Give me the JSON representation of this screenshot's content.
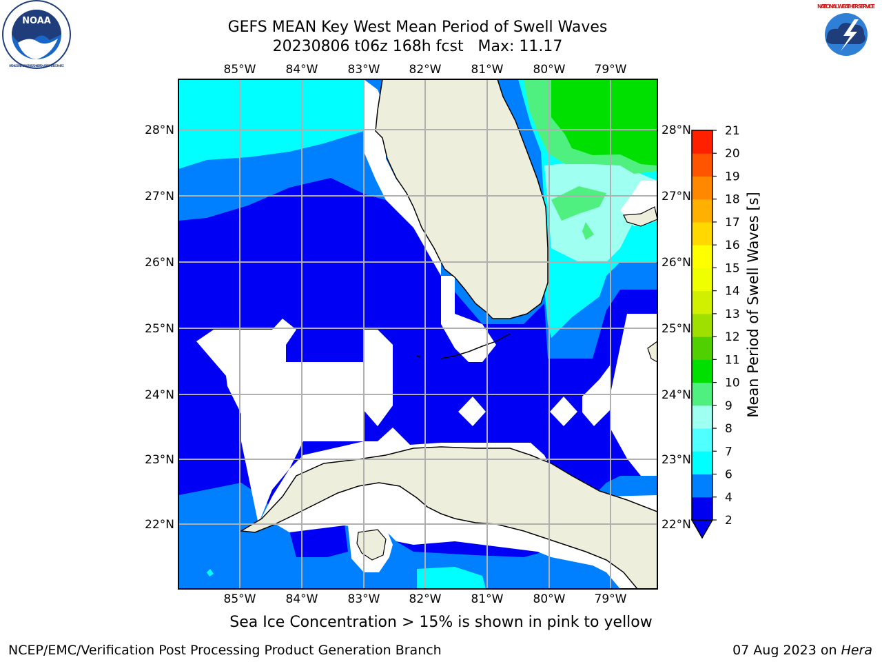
{
  "header": {
    "title_line1": "GEFS MEAN Key West Mean Period of Swell Waves",
    "title_line2": "20230806 t06z 168h fcst   Max: 11.17"
  },
  "logos": {
    "left": {
      "name": "NOAA",
      "ring_text": "NATIONAL OCEANIC AND ATMOSPHERIC ADMINISTRATION • U.S. DEPARTMENT OF COMMERCE"
    },
    "right": {
      "name": "NATIONAL WEATHER SERVICE"
    }
  },
  "map": {
    "lon_labels": [
      "85°W",
      "84°W",
      "83°W",
      "82°W",
      "81°W",
      "80°W",
      "79°W"
    ],
    "lat_labels": [
      "28°N",
      "27°N",
      "26°N",
      "25°N",
      "24°N",
      "23°N",
      "22°N"
    ],
    "colors": {
      "land": "#eeeedc",
      "ocean_2_4": "#0000f5",
      "ocean_4_6": "#0080ff",
      "ocean_6_7": "#00ffff",
      "ocean_8_9": "#9ffff0",
      "ocean_9_10": "#50f080",
      "ocean_10_11": "#00e000",
      "grid": "#b0b0b0"
    }
  },
  "colorbar": {
    "label": "Mean Period of Swell Waves [s]",
    "ticks": [
      "2",
      "4",
      "6",
      "7",
      "8",
      "9",
      "10",
      "11",
      "12",
      "13",
      "14",
      "15",
      "16",
      "17",
      "18",
      "19",
      "20",
      "21"
    ],
    "colors": [
      "#0000f0",
      "#0080ff",
      "#00ffff",
      "#50ffff",
      "#9ffff0",
      "#50f080",
      "#00e000",
      "#50d000",
      "#a0e000",
      "#d0f000",
      "#f0ff00",
      "#ffff00",
      "#ffd800",
      "#ffb000",
      "#ff8800",
      "#ff5500",
      "#ff2000"
    ]
  },
  "caption": "Sea Ice Concentration > 15% is shown in pink to yellow",
  "footer": {
    "left": "NCEP/EMC/Verification Post Processing Product Generation Branch",
    "right_date": "07 Aug 2023 on ",
    "right_host": "Hera"
  }
}
